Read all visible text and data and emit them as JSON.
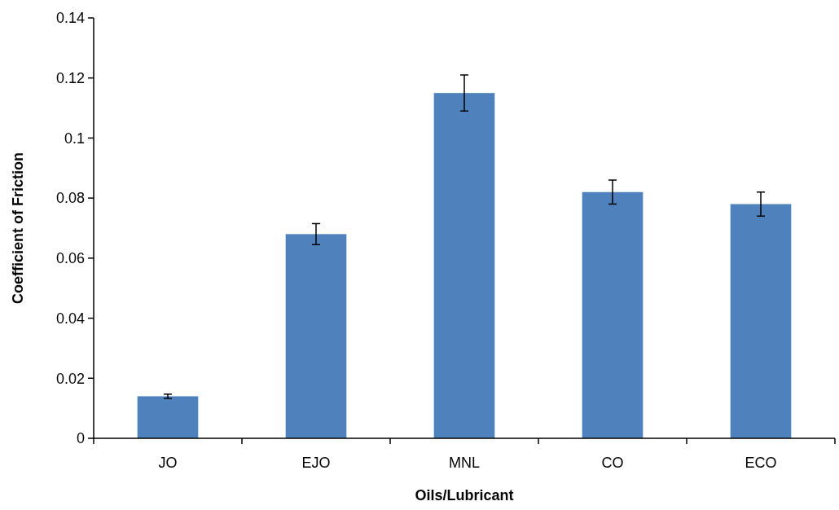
{
  "chart_data": {
    "type": "bar",
    "xlabel": "Oils/Lubricant",
    "ylabel": "Coefficient of Friction",
    "categories": [
      "JO",
      "EJO",
      "MNL",
      "CO",
      "ECO"
    ],
    "values": [
      0.014,
      0.068,
      0.115,
      0.082,
      0.078
    ],
    "errors": [
      0.0007,
      0.0035,
      0.006,
      0.004,
      0.004
    ],
    "color": "#4f81bd",
    "ylim": [
      0,
      0.14
    ],
    "yticks": [
      0,
      0.02,
      0.04,
      0.06,
      0.08,
      0.1,
      0.12,
      0.14
    ],
    "grid": false
  }
}
